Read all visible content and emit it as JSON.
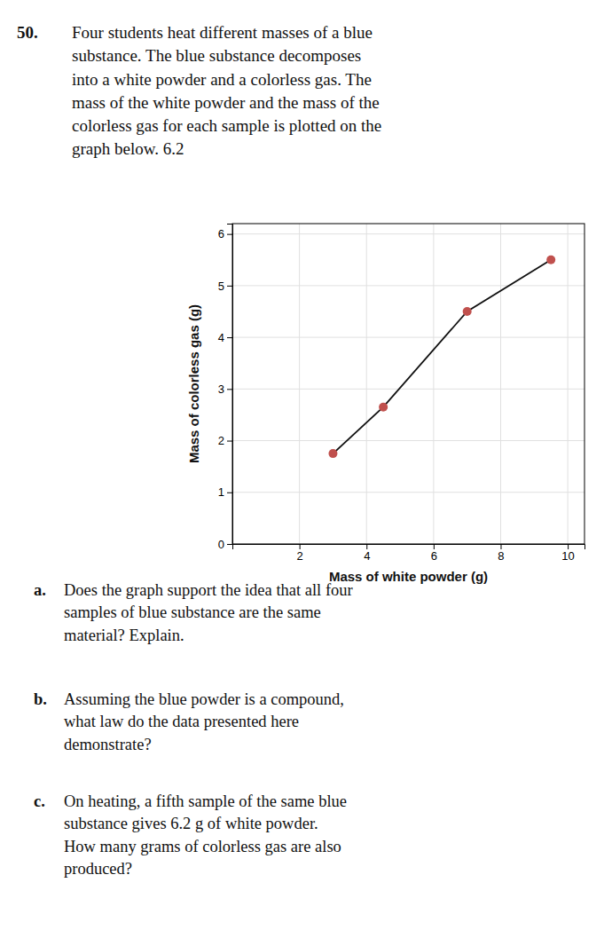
{
  "chart_data": {
    "type": "line",
    "x": [
      3.0,
      4.5,
      7.0,
      9.5
    ],
    "values": [
      1.75,
      2.65,
      4.5,
      5.5
    ],
    "color": "#111111",
    "colors": [
      "#c0504d",
      "#c0504d",
      "#c0504d",
      "#c0504d"
    ],
    "marker": "circle",
    "xlim": [
      0,
      10.5
    ],
    "ylim": [
      0,
      6.2
    ],
    "xticks": [
      2,
      4,
      6,
      8,
      10
    ],
    "yticks": [
      0,
      1,
      2,
      3,
      4,
      5,
      6
    ],
    "xlabel": "Mass of white powder (g)",
    "ylabel": "Mass of colorless gas (g)",
    "grid": true,
    "annotations": [
      "50.",
      "Four students heat different masses of a blue\nsubstance. The blue substance decomposes\ninto a white powder and a colorless gas. The\nmass of the white powder and the mass of the\ncolorless gas for each sample is plotted on the\ngraph below. 6.2",
      "a.",
      "Does the graph support the idea that all four\nsamples of blue substance are the same\nmaterial? Explain.",
      "b.",
      "Assuming the blue powder is a compound,\nwhat law do the data presented here\ndemonstrate?",
      "c.",
      "On heating, a fifth sample of the same blue\nsubstance gives 6.2 g of white powder.\nHow many grams of colorless gas are also\nproduced?"
    ]
  }
}
